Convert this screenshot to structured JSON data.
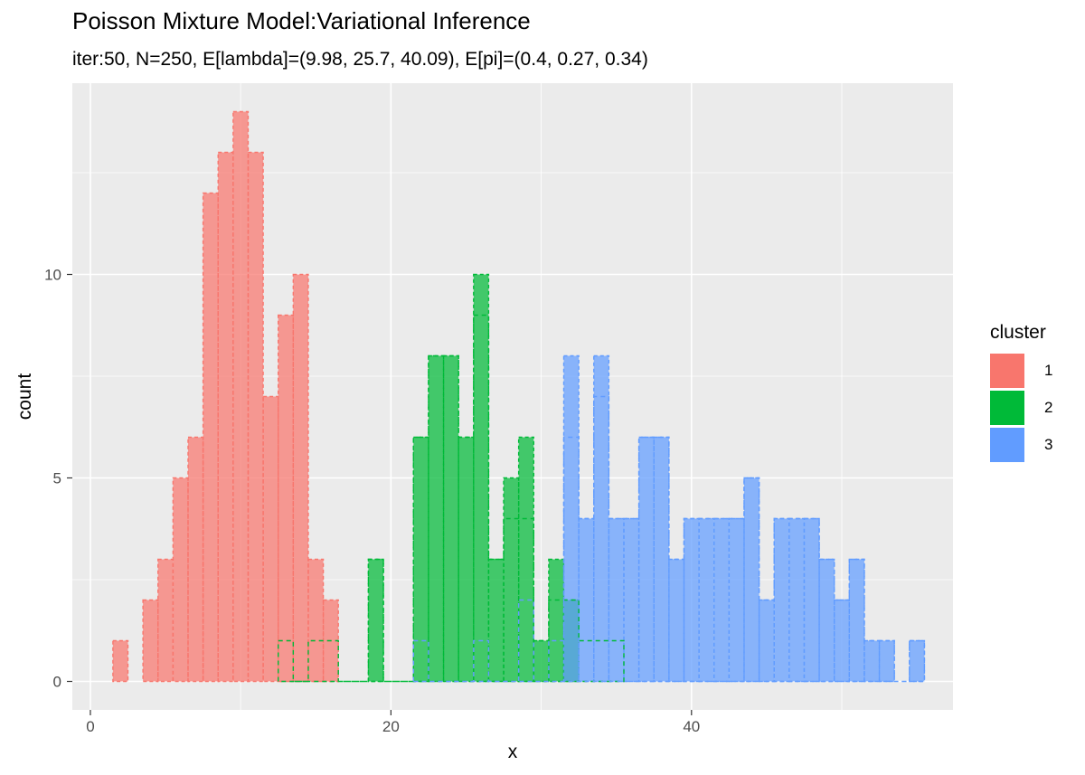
{
  "chart_data": {
    "type": "histogram",
    "title": "Poisson Mixture Model:Variational Inference",
    "subtitle": "iter:50, N=250, E[lambda]=(9.98, 25.7, 40.09), E[pi]=(0.4, 0.27, 0.34)",
    "xlabel": "x",
    "ylabel": "count",
    "xlim": [
      -1.2,
      57.4
    ],
    "ylim": [
      -0.7,
      14.7
    ],
    "x_ticks": [
      0,
      20,
      40
    ],
    "y_ticks": [
      0,
      5,
      10
    ],
    "bin_width": 1,
    "grid": true,
    "legend": {
      "title": "cluster",
      "position": "right"
    },
    "series": [
      {
        "name": "1",
        "color": "#F8766D",
        "estimated": {
          "x": [
            2,
            3,
            4,
            5,
            6,
            7,
            8,
            9,
            10,
            11,
            12,
            13,
            14,
            15,
            16
          ],
          "counts": [
            1,
            0,
            2,
            3,
            5,
            6,
            12,
            13,
            14,
            13,
            7,
            9,
            10,
            3,
            2
          ]
        },
        "true": {
          "x": [
            13,
            14,
            15,
            16
          ],
          "counts": [
            1,
            0,
            1,
            1
          ]
        }
      },
      {
        "name": "2",
        "color": "#00BA38",
        "estimated": {
          "x": [
            19,
            22,
            23,
            24,
            25,
            26,
            27,
            28,
            29,
            30,
            31,
            32
          ],
          "counts": [
            3,
            6,
            8,
            8,
            6,
            10,
            3,
            5,
            6,
            1,
            3,
            2
          ]
        },
        "true": {
          "x": [
            13,
            14,
            15,
            16,
            19,
            22,
            23,
            24,
            25,
            26,
            27,
            28,
            29,
            30,
            31,
            32,
            33,
            34,
            35
          ],
          "counts": [
            1,
            0,
            1,
            1,
            3,
            6,
            8,
            8,
            6,
            9,
            3,
            4,
            4,
            1,
            2,
            2,
            1,
            1,
            1
          ]
        }
      },
      {
        "name": "3",
        "color": "#619CFF",
        "estimated": {
          "x": [
            32,
            33,
            34,
            35,
            36,
            37,
            38,
            39,
            40,
            41,
            42,
            43,
            44,
            45,
            46,
            47,
            48,
            49,
            50,
            51,
            52,
            53,
            54,
            55
          ],
          "counts": [
            8,
            4,
            8,
            4,
            4,
            6,
            6,
            3,
            4,
            4,
            4,
            4,
            5,
            2,
            4,
            4,
            4,
            3,
            2,
            3,
            1,
            1,
            0,
            1
          ]
        },
        "true": {
          "x": [
            22,
            26,
            29,
            31,
            32,
            33,
            34,
            35,
            36,
            37,
            38,
            39,
            40,
            41,
            42,
            43,
            44,
            45,
            46,
            47,
            48,
            49,
            50,
            51,
            52,
            53,
            54,
            55
          ],
          "counts": [
            1,
            1,
            2,
            1,
            6,
            4,
            7,
            4,
            4,
            6,
            6,
            3,
            4,
            4,
            4,
            4,
            5,
            2,
            4,
            4,
            4,
            3,
            2,
            3,
            1,
            1,
            0,
            1
          ]
        }
      }
    ]
  }
}
